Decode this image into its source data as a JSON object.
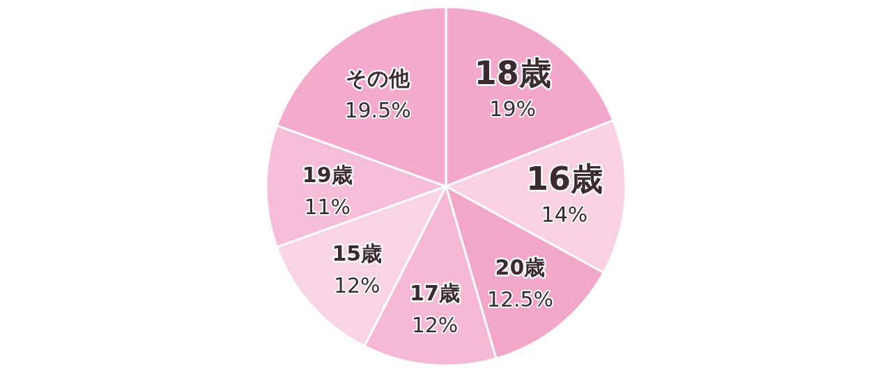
{
  "chart_data": {
    "type": "pie",
    "categories": [
      "18歳",
      "16歳",
      "20歳",
      "17歳",
      "15歳",
      "19歳",
      "その他"
    ],
    "values": [
      19,
      14,
      12.5,
      12,
      12,
      11,
      19.5
    ],
    "value_labels": [
      "19%",
      "14%",
      "12.5%",
      "12%",
      "12%",
      "11%",
      "19.5%"
    ],
    "colors": [
      "#f3a8cb",
      "#f9d1e3",
      "#f2a7c9",
      "#f5b9d5",
      "#f9d4e4",
      "#f6bdd8",
      "#f3aacc"
    ]
  }
}
